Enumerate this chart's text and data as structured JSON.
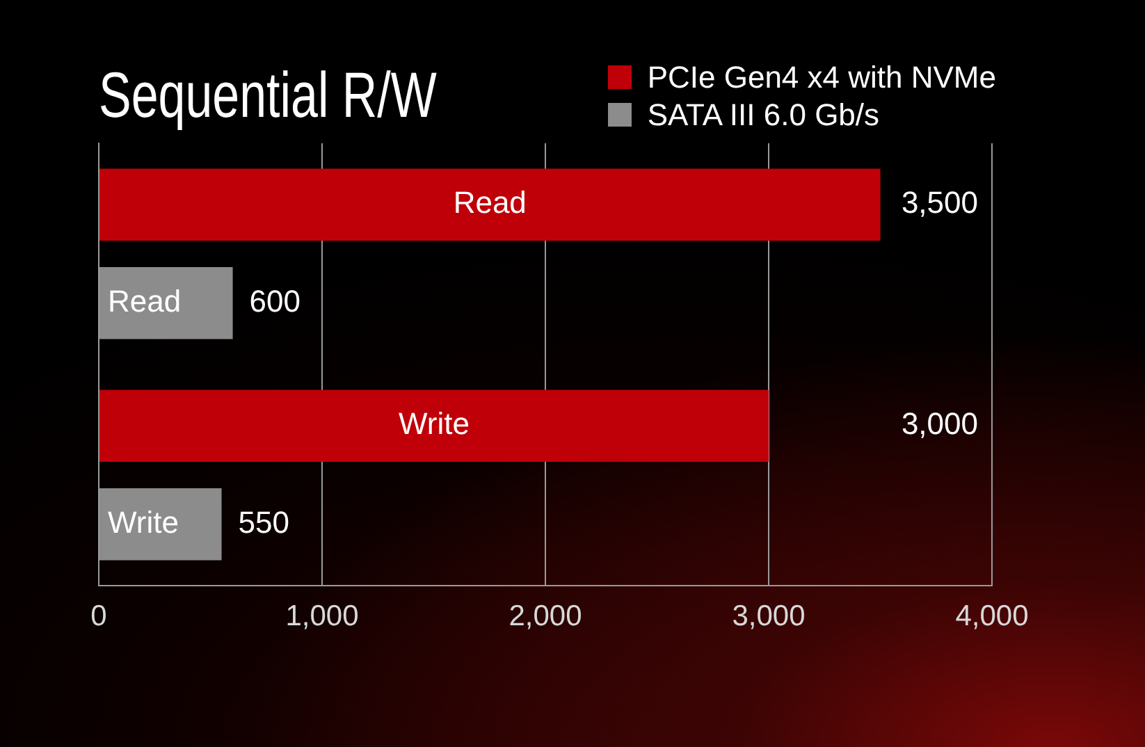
{
  "chart_data": {
    "type": "bar",
    "title": "Sequential R/W",
    "orientation": "horizontal",
    "categories": [
      "Read",
      "Write"
    ],
    "series": [
      {
        "name": "PCIe Gen4 x4 with NVMe",
        "color": "#c00008",
        "values": [
          3500,
          3000
        ],
        "value_labels": [
          "3,500",
          "3,000"
        ]
      },
      {
        "name": "SATA III 6.0 Gb/s",
        "color": "#8c8c8c",
        "values": [
          600,
          550
        ],
        "value_labels": [
          "600",
          "550"
        ]
      }
    ],
    "xlim": [
      0,
      4000
    ],
    "xticks": [
      0,
      {
        "value": 1000,
        "label": "1,000"
      },
      {
        "value": 2000,
        "label": "2,000"
      },
      {
        "value": 3000,
        "label": "3,000"
      },
      {
        "value": 4000,
        "label": "4,000"
      }
    ],
    "grid": "x",
    "legend": "top right"
  }
}
